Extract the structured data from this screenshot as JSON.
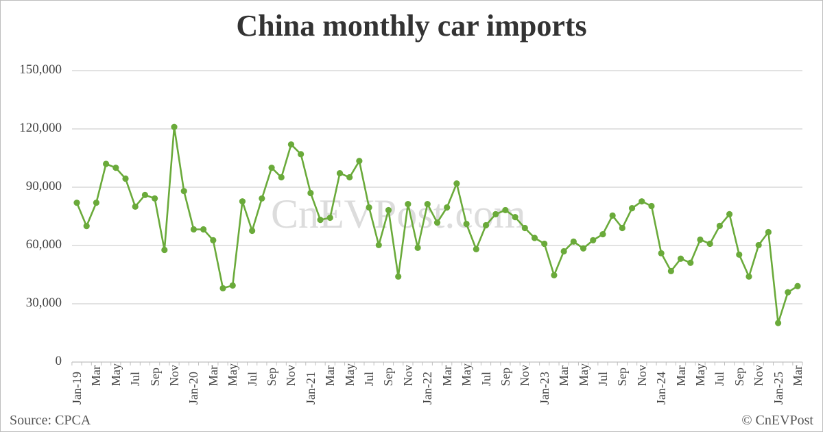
{
  "title": "China monthly car imports",
  "watermark": "CnEVPost.com",
  "footer": {
    "source": "Source: CPCA",
    "copyright": "© CnEVPost"
  },
  "colors": {
    "line": "#6aaa3a",
    "grid": "#d0d0d0",
    "axis_text": "#444444",
    "title": "#333333"
  },
  "chart_data": {
    "type": "line",
    "title": "China monthly car imports",
    "xlabel": "",
    "ylabel": "",
    "ylim": [
      0,
      150000
    ],
    "yticks": [
      0,
      30000,
      60000,
      90000,
      120000,
      150000
    ],
    "ytick_labels": [
      "0",
      "30,000",
      "60,000",
      "90,000",
      "120,000",
      "150,000"
    ],
    "grid": true,
    "legend": "none",
    "x_tick_labels": [
      "Jan-19",
      "Mar",
      "May",
      "Jul",
      "Sep",
      "Nov",
      "Jan-20",
      "Mar",
      "May",
      "Jul",
      "Sep",
      "Nov",
      "Jan-21",
      "Mar",
      "May",
      "Jul",
      "Sep",
      "Nov",
      "Jan-22",
      "Mar",
      "May",
      "Jul",
      "Sep",
      "Nov",
      "Jan-23",
      "Mar",
      "May",
      "Jul",
      "Sep",
      "Nov",
      "Jan-24",
      "Mar",
      "May",
      "Jul",
      "Sep",
      "Nov",
      "Jan-25",
      "Mar"
    ],
    "categories": [
      "Jan-19",
      "Feb-19",
      "Mar-19",
      "Apr-19",
      "May-19",
      "Jun-19",
      "Jul-19",
      "Aug-19",
      "Sep-19",
      "Oct-19",
      "Nov-19",
      "Dec-19",
      "Jan-20",
      "Feb-20",
      "Mar-20",
      "Apr-20",
      "May-20",
      "Jun-20",
      "Jul-20",
      "Aug-20",
      "Sep-20",
      "Oct-20",
      "Nov-20",
      "Dec-20",
      "Jan-21",
      "Feb-21",
      "Mar-21",
      "Apr-21",
      "May-21",
      "Jun-21",
      "Jul-21",
      "Aug-21",
      "Sep-21",
      "Oct-21",
      "Nov-21",
      "Dec-21",
      "Jan-22",
      "Feb-22",
      "Mar-22",
      "Apr-22",
      "May-22",
      "Jun-22",
      "Jul-22",
      "Aug-22",
      "Sep-22",
      "Oct-22",
      "Nov-22",
      "Dec-22",
      "Jan-23",
      "Feb-23",
      "Mar-23",
      "Apr-23",
      "May-23",
      "Jun-23",
      "Jul-23",
      "Aug-23",
      "Sep-23",
      "Oct-23",
      "Nov-23",
      "Dec-23",
      "Jan-24",
      "Feb-24",
      "Mar-24",
      "Apr-24",
      "May-24",
      "Jun-24",
      "Jul-24",
      "Aug-24",
      "Sep-24",
      "Oct-24",
      "Nov-24",
      "Dec-24",
      "Jan-25",
      "Feb-25",
      "Mar-25"
    ],
    "series": [
      {
        "name": "Car imports",
        "values": [
          82000,
          70000,
          82000,
          102000,
          100000,
          94400,
          80000,
          86000,
          84200,
          57700,
          121000,
          88000,
          68300,
          68300,
          62700,
          38000,
          39400,
          82700,
          67600,
          84200,
          100000,
          95100,
          112000,
          107000,
          87000,
          73200,
          74300,
          97200,
          95100,
          103500,
          79600,
          60200,
          78200,
          44000,
          81300,
          58800,
          81300,
          71800,
          79600,
          91900,
          71100,
          58100,
          70400,
          76100,
          78200,
          74600,
          69000,
          63900,
          60900,
          44700,
          57000,
          62000,
          58500,
          62700,
          65800,
          75400,
          69000,
          79200,
          82700,
          80300,
          56000,
          46800,
          53200,
          51100,
          63000,
          60900,
          70100,
          76100,
          55300,
          44000,
          60200,
          66900,
          20100,
          35900,
          39100
        ]
      }
    ]
  }
}
